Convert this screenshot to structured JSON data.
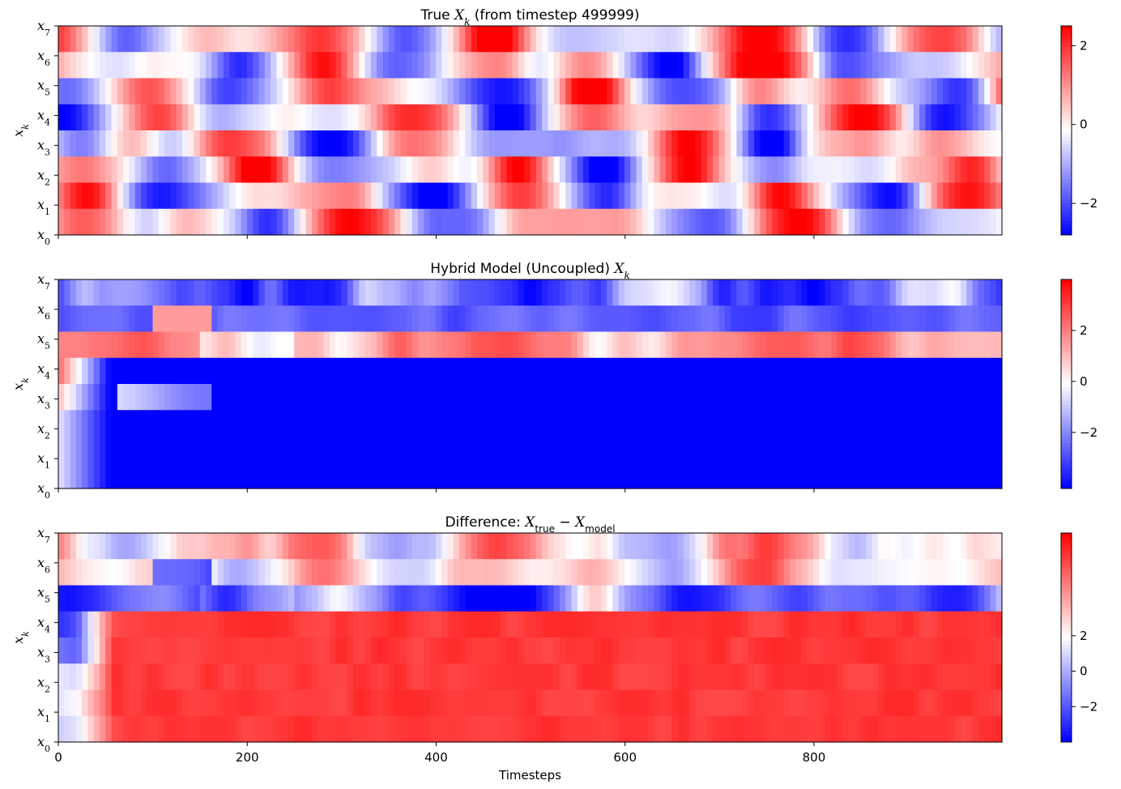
{
  "figure": {
    "xlabel": "Timesteps"
  },
  "chart_data": [
    {
      "type": "heatmap",
      "title": "True X_k (from timestep 499999)",
      "title_parts": [
        "True ",
        "X",
        "k",
        " (from timestep 499999)"
      ],
      "ylabel": "X_k",
      "x_range": [
        0,
        999
      ],
      "x_ticks": [
        0,
        200,
        400,
        600,
        800
      ],
      "y_ticks": [
        "X0",
        "X1",
        "X2",
        "X3",
        "X4",
        "X5",
        "X6",
        "X7"
      ],
      "colorbar": {
        "min": -2.8,
        "max": 2.5,
        "ticks": [
          2,
          0,
          -2
        ],
        "tick_labels": [
          "2",
          "0",
          "−2"
        ],
        "colormap": "bwr"
      },
      "pattern": "chaotic",
      "amplitude": 2.2
    },
    {
      "type": "heatmap",
      "title": "Hybrid Model (Uncoupled) X_k",
      "title_parts": [
        "Hybrid Model (Uncoupled) ",
        "X",
        "k",
        ""
      ],
      "ylabel": "X_k",
      "x_range": [
        0,
        999
      ],
      "x_ticks": [
        0,
        200,
        400,
        600,
        800
      ],
      "y_ticks": [
        "X0",
        "X1",
        "X2",
        "X3",
        "X4",
        "X5",
        "X6",
        "X7"
      ],
      "colorbar": {
        "min": -4.2,
        "max": 4.0,
        "ticks": [
          2,
          0,
          -2
        ],
        "tick_labels": [
          "2",
          "0",
          "−2"
        ],
        "colormap": "bwr"
      },
      "pattern": "model",
      "amplitude": 3.5
    },
    {
      "type": "heatmap",
      "title": "Difference: X_true − X_model",
      "title_parts": [
        "Difference: ",
        "X",
        "true",
        " − ",
        "X",
        "model"
      ],
      "ylabel": "X_k",
      "x_range": [
        0,
        999
      ],
      "x_ticks": [
        0,
        200,
        400,
        600,
        800
      ],
      "y_ticks": [
        "X0",
        "X1",
        "X2",
        "X3",
        "X4",
        "X5",
        "X6",
        "X7"
      ],
      "colorbar": {
        "min": -4.0,
        "max": 7.8,
        "ticks": [
          2,
          0,
          -2
        ],
        "tick_labels": [
          "2",
          "0",
          "−2"
        ],
        "colormap": "bwr"
      },
      "pattern": "difference",
      "amplitude": 5.5
    }
  ]
}
